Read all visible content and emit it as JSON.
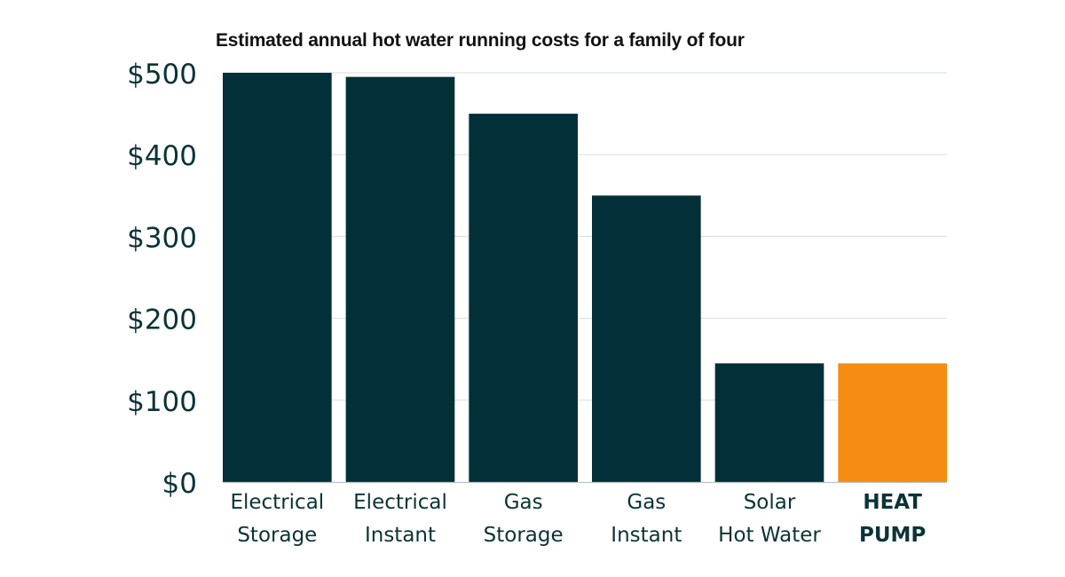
{
  "chart_data": {
    "type": "bar",
    "title": "Estimated annual hot water running costs for a family of four",
    "xlabel": "",
    "ylabel": "",
    "ylim": [
      0,
      500
    ],
    "yticks": [
      0,
      100,
      200,
      300,
      400,
      500
    ],
    "ytick_labels": [
      "$0",
      "$100",
      "$200",
      "$300",
      "$400",
      "$500"
    ],
    "grid": true,
    "categories": [
      [
        "Electrical",
        "Storage"
      ],
      [
        "Electrical",
        "Instant"
      ],
      [
        "Gas",
        "Storage"
      ],
      [
        "Gas",
        "Instant"
      ],
      [
        "Solar",
        "Hot Water"
      ],
      [
        "HEAT",
        "PUMP"
      ]
    ],
    "values": [
      500,
      495,
      450,
      350,
      145,
      145
    ],
    "highlight_index": 5,
    "colors": {
      "bar": "#033038",
      "highlight": "#f78c12",
      "grid": "#dde3e3",
      "text": "#0b3338"
    }
  }
}
